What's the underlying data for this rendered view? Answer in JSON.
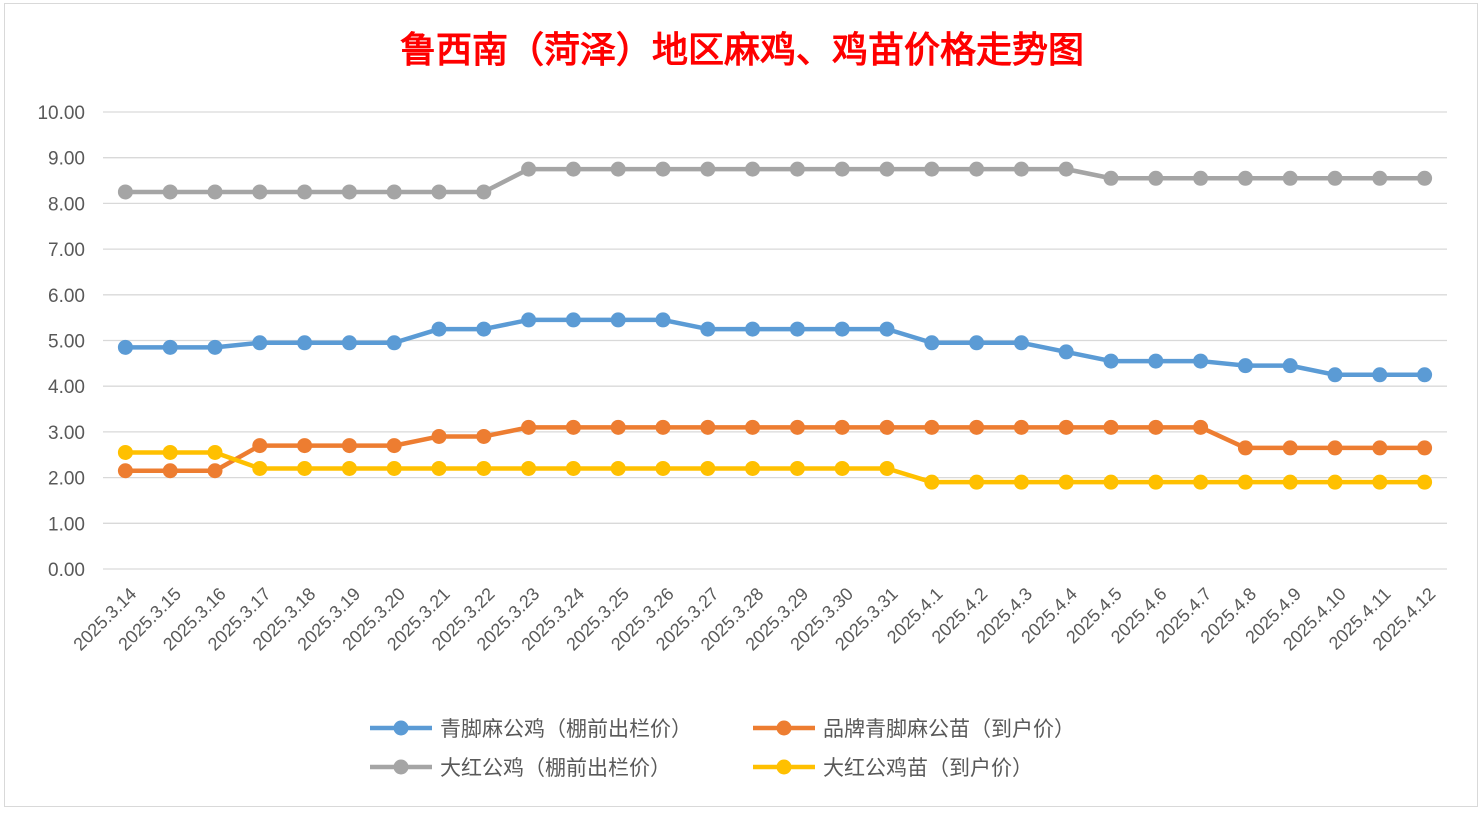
{
  "chart_data": {
    "type": "line",
    "title": "鲁西南（菏泽）地区麻鸡、鸡苗价格走势图",
    "ylim": [
      0,
      10
    ],
    "y_ticks": [
      "0.00",
      "1.00",
      "2.00",
      "3.00",
      "4.00",
      "5.00",
      "6.00",
      "7.00",
      "8.00",
      "9.00",
      "10.00"
    ],
    "grid": true,
    "legend_position": "bottom",
    "categories": [
      "2025.3.14",
      "2025.3.15",
      "2025.3.16",
      "2025.3.17",
      "2025.3.18",
      "2025.3.19",
      "2025.3.20",
      "2025.3.21",
      "2025.3.22",
      "2025.3.23",
      "2025.3.24",
      "2025.3.25",
      "2025.3.26",
      "2025.3.27",
      "2025.3.28",
      "2025.3.29",
      "2025.3.30",
      "2025.3.31",
      "2025.4.1",
      "2025.4.2",
      "2025.4.3",
      "2025.4.4",
      "2025.4.5",
      "2025.4.6",
      "2025.4.7",
      "2025.4.8",
      "2025.4.9",
      "2025.4.10",
      "2025.4.11",
      "2025.4.12"
    ],
    "series": [
      {
        "name": "青脚麻公鸡（棚前出栏价）",
        "color": "#5b9bd5",
        "values": [
          4.85,
          4.85,
          4.85,
          4.95,
          4.95,
          4.95,
          4.95,
          5.25,
          5.25,
          5.45,
          5.45,
          5.45,
          5.45,
          5.25,
          5.25,
          5.25,
          5.25,
          5.25,
          4.95,
          4.95,
          4.95,
          4.75,
          4.55,
          4.55,
          4.55,
          4.45,
          4.45,
          4.25,
          4.25,
          4.25
        ]
      },
      {
        "name": "品牌青脚麻公苗（到户价）",
        "color": "#ed7d31",
        "values": [
          2.15,
          2.15,
          2.15,
          2.7,
          2.7,
          2.7,
          2.7,
          2.9,
          2.9,
          3.1,
          3.1,
          3.1,
          3.1,
          3.1,
          3.1,
          3.1,
          3.1,
          3.1,
          3.1,
          3.1,
          3.1,
          3.1,
          3.1,
          3.1,
          3.1,
          2.65,
          2.65,
          2.65,
          2.65,
          2.65
        ]
      },
      {
        "name": "大红公鸡（棚前出栏价）",
        "color": "#a5a5a5",
        "values": [
          8.25,
          8.25,
          8.25,
          8.25,
          8.25,
          8.25,
          8.25,
          8.25,
          8.25,
          8.75,
          8.75,
          8.75,
          8.75,
          8.75,
          8.75,
          8.75,
          8.75,
          8.75,
          8.75,
          8.75,
          8.75,
          8.75,
          8.55,
          8.55,
          8.55,
          8.55,
          8.55,
          8.55,
          8.55,
          8.55
        ]
      },
      {
        "name": "大红公鸡苗（到户价）",
        "color": "#ffc000",
        "values": [
          2.55,
          2.55,
          2.55,
          2.2,
          2.2,
          2.2,
          2.2,
          2.2,
          2.2,
          2.2,
          2.2,
          2.2,
          2.2,
          2.2,
          2.2,
          2.2,
          2.2,
          2.2,
          1.9,
          1.9,
          1.9,
          1.9,
          1.9,
          1.9,
          1.9,
          1.9,
          1.9,
          1.9,
          1.9,
          1.9
        ]
      }
    ]
  }
}
